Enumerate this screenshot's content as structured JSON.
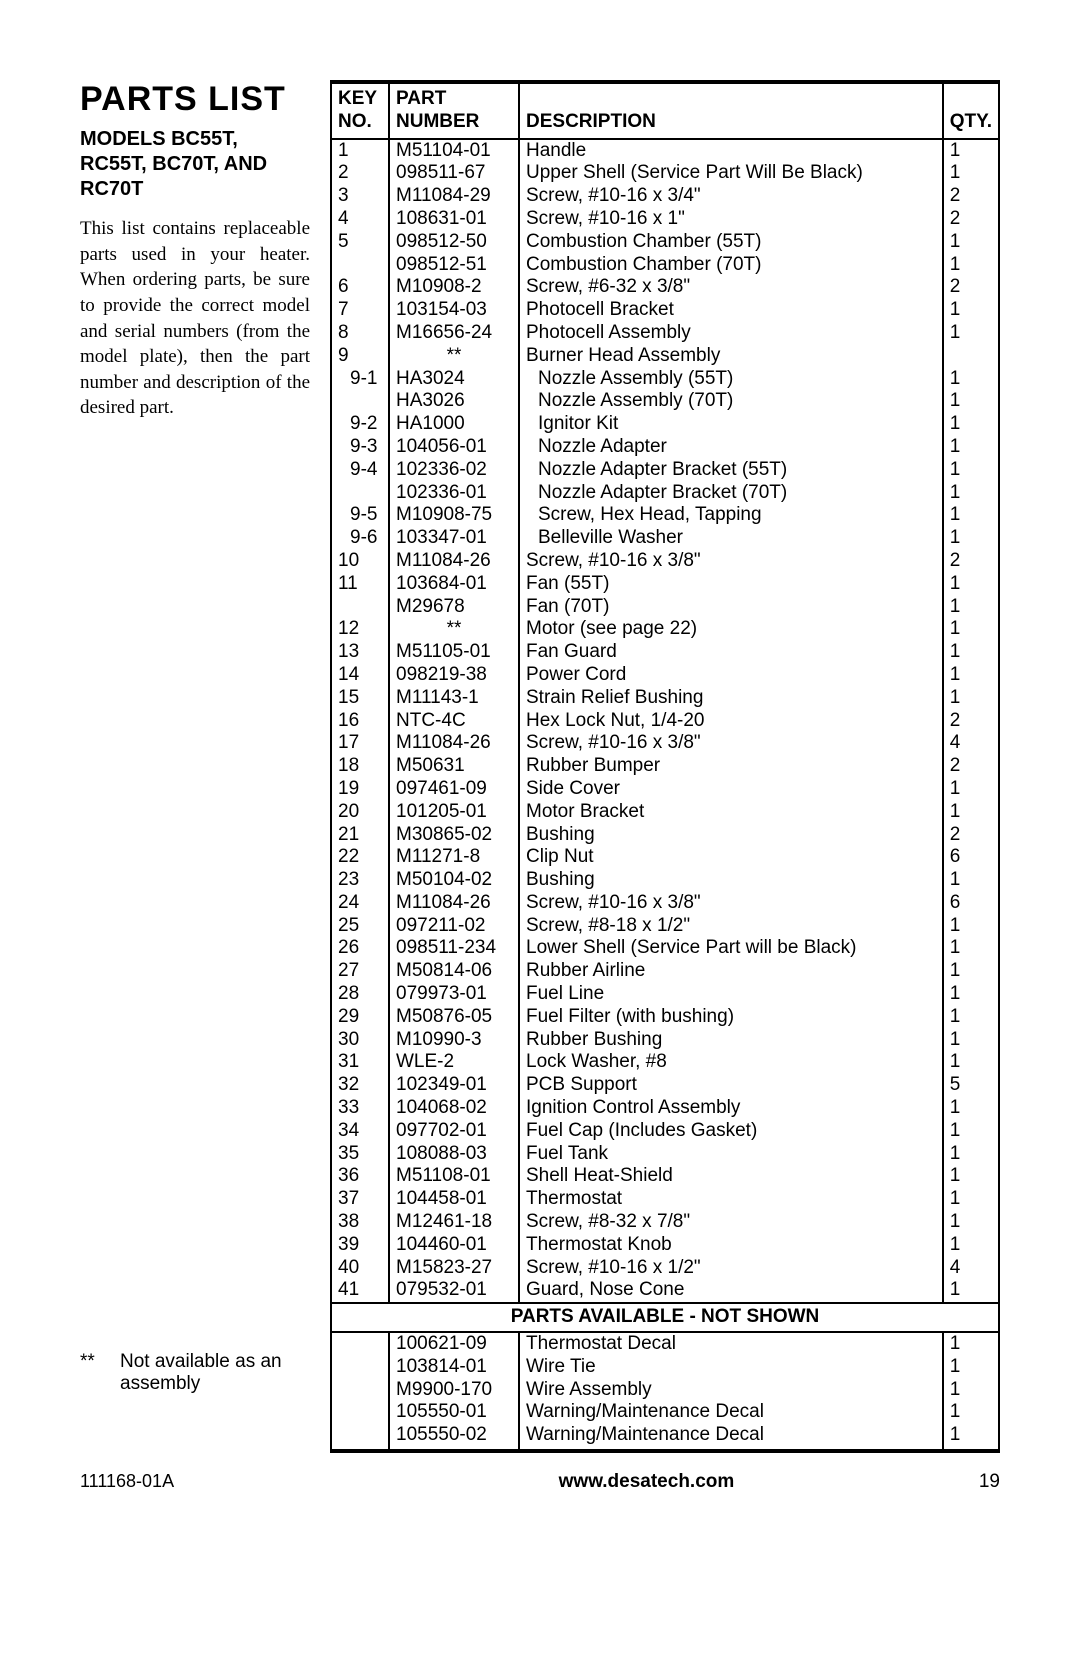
{
  "title": "PARTS LIST",
  "models": "MODELS BC55T, RC55T, BC70T, AND RC70T",
  "intro": "This list contains replace­able parts used in your heater. When ordering parts, be sure to provide the correct model and se­rial numbers (from the model plate), then the part number and description of the desired part.",
  "footnote_mark": "**",
  "footnote_text": "Not available as an assembly",
  "headers": {
    "key1": "KEY",
    "key2": "NO.",
    "pn1": "PART",
    "pn2": "NUMBER",
    "desc1": "",
    "desc2": "DESCRIPTION",
    "qty1": "",
    "qty2": "QTY."
  },
  "section_label": "PARTS AVAILABLE - NOT SHOWN",
  "rows": [
    {
      "key": "1",
      "pn": "M51104-01",
      "desc": "Handle",
      "qty": "1"
    },
    {
      "key": "2",
      "pn": "098511-67",
      "desc": "Upper Shell (Service Part Will Be Black)",
      "qty": "1"
    },
    {
      "key": "3",
      "pn": "M11084-29",
      "desc": "Screw, #10-16 x 3/4\"",
      "qty": "2"
    },
    {
      "key": "4",
      "pn": "108631-01",
      "desc": "Screw, #10-16 x 1\"",
      "qty": "2"
    },
    {
      "key": "5",
      "pn": "098512-50",
      "desc": "Combustion Chamber (55T)",
      "qty": "1"
    },
    {
      "key": "",
      "pn": "098512-51",
      "desc": "Combustion Chamber (70T)",
      "qty": "1"
    },
    {
      "key": "6",
      "pn": "M10908-2",
      "desc": "Screw, #6-32 x 3/8\"",
      "qty": "2"
    },
    {
      "key": "7",
      "pn": "103154-03",
      "desc": "Photocell Bracket",
      "qty": "1"
    },
    {
      "key": "8",
      "pn": "M16656-24",
      "desc": "Photocell Assembly",
      "qty": "1"
    },
    {
      "key": "9",
      "pn": "**",
      "pn_center": true,
      "desc": "Burner Head Assembly",
      "qty": ""
    },
    {
      "key": "9-1",
      "sub": true,
      "pn": "HA3024",
      "desc": "Nozzle Assembly (55T)",
      "qty": "1"
    },
    {
      "key": "",
      "sub": true,
      "pn": "HA3026",
      "desc": "Nozzle Assembly (70T)",
      "qty": "1"
    },
    {
      "key": "9-2",
      "sub": true,
      "pn": "HA1000",
      "desc": "Ignitor Kit",
      "qty": "1"
    },
    {
      "key": "9-3",
      "sub": true,
      "pn": "104056-01",
      "desc": "Nozzle Adapter",
      "qty": "1"
    },
    {
      "key": "9-4",
      "sub": true,
      "pn": "102336-02",
      "desc": "Nozzle Adapter Bracket (55T)",
      "qty": "1"
    },
    {
      "key": "",
      "sub": true,
      "pn": "102336-01",
      "desc": "Nozzle Adapter Bracket (70T)",
      "qty": "1"
    },
    {
      "key": "9-5",
      "sub": true,
      "pn": "M10908-75",
      "desc": "Screw, Hex Head, Tapping",
      "qty": "1"
    },
    {
      "key": "9-6",
      "sub": true,
      "pn": "103347-01",
      "desc": "Belleville Washer",
      "qty": "1"
    },
    {
      "key": "10",
      "pn": "M11084-26",
      "desc": "Screw, #10-16 x 3/8\"",
      "qty": "2"
    },
    {
      "key": "11",
      "pn": "103684-01",
      "desc": "Fan (55T)",
      "qty": "1"
    },
    {
      "key": "",
      "pn": "M29678",
      "desc": "Fan (70T)",
      "qty": "1"
    },
    {
      "key": "12",
      "pn": "**",
      "pn_center": true,
      "desc": "Motor (see page 22)",
      "qty": "1"
    },
    {
      "key": "13",
      "pn": "M51105-01",
      "desc": "Fan Guard",
      "qty": "1"
    },
    {
      "key": "14",
      "pn": "098219-38",
      "desc": "Power Cord",
      "qty": "1"
    },
    {
      "key": "15",
      "pn": "M11143-1",
      "desc": "Strain Relief Bushing",
      "qty": "1"
    },
    {
      "key": "16",
      "pn": "NTC-4C",
      "desc": "Hex Lock Nut, 1/4-20",
      "qty": "2"
    },
    {
      "key": "17",
      "pn": "M11084-26",
      "desc": "Screw, #10-16 x 3/8\"",
      "qty": "4"
    },
    {
      "key": "18",
      "pn": "M50631",
      "desc": "Rubber Bumper",
      "qty": "2"
    },
    {
      "key": "19",
      "pn": "097461-09",
      "desc": "Side Cover",
      "qty": "1"
    },
    {
      "key": "20",
      "pn": "101205-01",
      "desc": "Motor Bracket",
      "qty": "1"
    },
    {
      "key": "21",
      "pn": "M30865-02",
      "desc": "Bushing",
      "qty": "2"
    },
    {
      "key": "22",
      "pn": "M11271-8",
      "desc": "Clip Nut",
      "qty": "6"
    },
    {
      "key": "23",
      "pn": "M50104-02",
      "desc": "Bushing",
      "qty": "1"
    },
    {
      "key": "24",
      "pn": "M11084-26",
      "desc": "Screw, #10-16 x 3/8\"",
      "qty": "6"
    },
    {
      "key": "25",
      "pn": "097211-02",
      "desc": "Screw, #8-18 x 1/2\"",
      "qty": "1"
    },
    {
      "key": "26",
      "pn": "098511-234",
      "desc": "Lower Shell (Service Part will be Black)",
      "qty": "1"
    },
    {
      "key": "27",
      "pn": "M50814-06",
      "desc": "Rubber Airline",
      "qty": "1"
    },
    {
      "key": "28",
      "pn": "079973-01",
      "desc": "Fuel Line",
      "qty": "1"
    },
    {
      "key": "29",
      "pn": "M50876-05",
      "desc": "Fuel Filter (with bushing)",
      "qty": "1"
    },
    {
      "key": "30",
      "pn": "M10990-3",
      "desc": "Rubber Bushing",
      "qty": "1"
    },
    {
      "key": "31",
      "pn": "WLE-2",
      "desc": "Lock Washer, #8",
      "qty": "1"
    },
    {
      "key": "32",
      "pn": "102349-01",
      "desc": "PCB Support",
      "qty": "5"
    },
    {
      "key": "33",
      "pn": "104068-02",
      "desc": "Ignition Control Assembly",
      "qty": "1"
    },
    {
      "key": "34",
      "pn": "097702-01",
      "desc": "Fuel Cap (Includes Gasket)",
      "qty": "1"
    },
    {
      "key": "35",
      "pn": "108088-03",
      "desc": "Fuel Tank",
      "qty": "1"
    },
    {
      "key": "36",
      "pn": "M51108-01",
      "desc": "Shell Heat-Shield",
      "qty": "1"
    },
    {
      "key": "37",
      "pn": "104458-01",
      "desc": "Thermostat",
      "qty": "1"
    },
    {
      "key": "38",
      "pn": "M12461-18",
      "desc": "Screw, #8-32 x 7/8\"",
      "qty": "1"
    },
    {
      "key": "39",
      "pn": "104460-01",
      "desc": "Thermostat Knob",
      "qty": "1"
    },
    {
      "key": "40",
      "pn": "M15823-27",
      "desc": "Screw, #10-16 x 1/2\"",
      "qty": "4"
    },
    {
      "key": "41",
      "pn": "079532-01",
      "desc": "Guard, Nose Cone",
      "qty": "1"
    }
  ],
  "rows_notshown": [
    {
      "key": "",
      "pn": "100621-09",
      "desc": "Thermostat Decal",
      "qty": "1"
    },
    {
      "key": "",
      "pn": "103814-01",
      "desc": "Wire Tie",
      "qty": "1"
    },
    {
      "key": "",
      "pn": "M9900-170",
      "desc": "Wire Assembly",
      "qty": "1"
    },
    {
      "key": "",
      "pn": "105550-01",
      "desc": "Warning/Maintenance Decal",
      "qty": "1"
    },
    {
      "key": "",
      "pn": "105550-02",
      "desc": "Warning/Maintenance Decal",
      "qty": "1"
    }
  ],
  "footer": {
    "docid": "111168-01A",
    "url": "www.desatech.com",
    "page": "19"
  }
}
